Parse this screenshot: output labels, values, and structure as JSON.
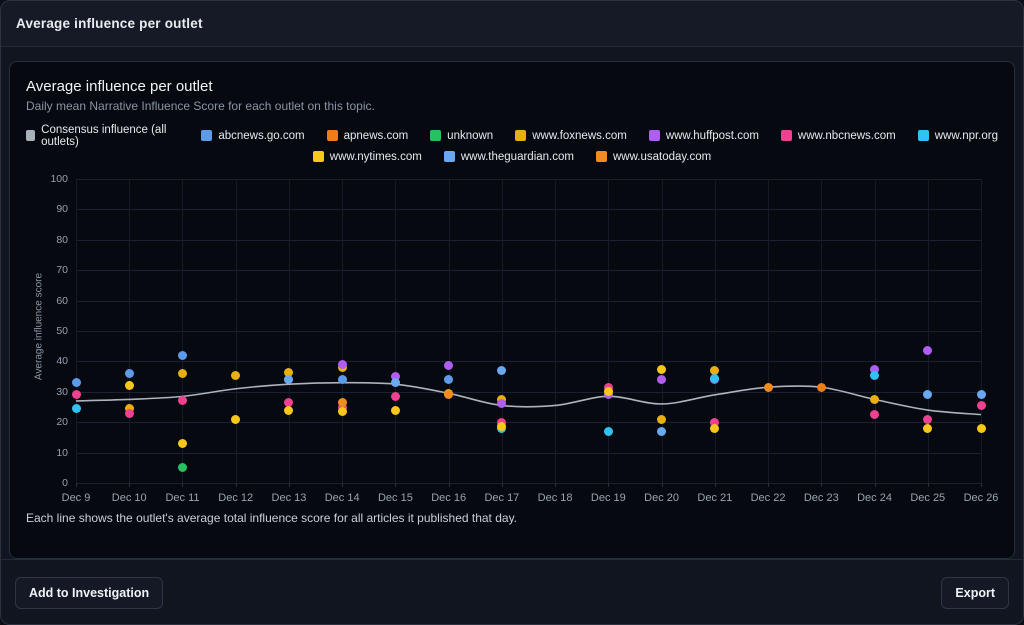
{
  "header": {
    "title": "Average influence per outlet"
  },
  "panel": {
    "title": "Average influence per outlet",
    "subtitle": "Daily mean Narrative Influence Score for each outlet on this topic.",
    "caption": "Each line shows the outlet's average total influence score for all articles it published that day."
  },
  "buttons": {
    "add_to_investigation": "Add to Investigation",
    "export": "Export"
  },
  "legend": {
    "rows": [
      [
        {
          "label": "Consensus influence (all outlets)",
          "color": "#a9b1ba"
        },
        {
          "label": "abcnews.go.com",
          "color": "#5b9bea"
        },
        {
          "label": "apnews.com",
          "color": "#ed7d18"
        },
        {
          "label": "unknown",
          "color": "#27c161"
        },
        {
          "label": "www.foxnews.com",
          "color": "#e9ae10"
        },
        {
          "label": "www.huffpost.com",
          "color": "#b05df2"
        },
        {
          "label": "www.nbcnews.com",
          "color": "#ee4190"
        },
        {
          "label": "www.npr.org",
          "color": "#30c2f2"
        }
      ],
      [
        {
          "label": "www.nytimes.com",
          "color": "#f8c718"
        },
        {
          "label": "www.theguardian.com",
          "color": "#6aa9f0"
        },
        {
          "label": "www.usatoday.com",
          "color": "#f28c1e"
        }
      ]
    ]
  },
  "chart_data": {
    "type": "scatter",
    "title": "Average influence per outlet",
    "ylabel": "Average influence score",
    "ylim": [
      0,
      100
    ],
    "ytick_step": 10,
    "grid": true,
    "legend_position": "top",
    "categories": [
      "Dec 9",
      "Dec 10",
      "Dec 11",
      "Dec 12",
      "Dec 13",
      "Dec 14",
      "Dec 15",
      "Dec 16",
      "Dec 17",
      "Dec 18",
      "Dec 19",
      "Dec 20",
      "Dec 21",
      "Dec 22",
      "Dec 23",
      "Dec 24",
      "Dec 25",
      "Dec 26"
    ],
    "consensus": {
      "name": "Consensus influence (all outlets)",
      "color": "#b6bdc6",
      "type": "line",
      "values": [
        27,
        27.5,
        28.5,
        31,
        32.5,
        33,
        32.5,
        29.5,
        25.5,
        25.5,
        28.5,
        26,
        29,
        31.5,
        31.5,
        27.5,
        24,
        22.5
      ]
    },
    "series": [
      {
        "name": "abcnews.go.com",
        "color": "#5b9bea",
        "values": [
          33,
          36,
          42,
          null,
          null,
          34,
          null,
          34,
          null,
          null,
          null,
          null,
          null,
          null,
          null,
          null,
          null,
          null
        ]
      },
      {
        "name": "apnews.com",
        "color": "#ed7d18",
        "values": [
          null,
          null,
          null,
          null,
          null,
          null,
          null,
          null,
          null,
          null,
          null,
          null,
          null,
          null,
          31.5,
          null,
          null,
          null
        ]
      },
      {
        "name": "unknown",
        "color": "#27c161",
        "values": [
          null,
          null,
          5,
          null,
          null,
          null,
          null,
          null,
          null,
          null,
          null,
          null,
          null,
          null,
          null,
          null,
          null,
          null
        ]
      },
      {
        "name": "www.foxnews.com",
        "color": "#e9ae10",
        "values": [
          null,
          24.5,
          36,
          35.5,
          36.5,
          38,
          null,
          29.5,
          27.5,
          null,
          null,
          21,
          37,
          null,
          null,
          27.5,
          null,
          null
        ]
      },
      {
        "name": "www.huffpost.com",
        "color": "#b05df2",
        "values": [
          null,
          null,
          null,
          null,
          null,
          39,
          35,
          38.5,
          26,
          null,
          29,
          34,
          34,
          null,
          null,
          37.5,
          43.5,
          null
        ]
      },
      {
        "name": "www.nbcnews.com",
        "color": "#ee4190",
        "values": [
          29,
          23,
          27,
          null,
          26.5,
          25,
          28.5,
          null,
          20,
          null,
          31.5,
          null,
          20,
          null,
          null,
          22.5,
          21,
          25.5
        ]
      },
      {
        "name": "www.npr.org",
        "color": "#30c2f2",
        "values": [
          24.5,
          null,
          null,
          null,
          null,
          null,
          null,
          null,
          18,
          null,
          17,
          null,
          34.5,
          null,
          null,
          35.5,
          null,
          null
        ]
      },
      {
        "name": "www.nytimes.com",
        "color": "#f8c718",
        "values": [
          null,
          32,
          13,
          21,
          24,
          23.5,
          24,
          null,
          18.5,
          null,
          30,
          37.5,
          18,
          null,
          null,
          null,
          18,
          18
        ]
      },
      {
        "name": "www.theguardian.com",
        "color": "#6aa9f0",
        "values": [
          null,
          null,
          null,
          null,
          34,
          null,
          33,
          null,
          37,
          null,
          null,
          17,
          null,
          null,
          null,
          null,
          29,
          29
        ]
      },
      {
        "name": "www.usatoday.com",
        "color": "#f28c1e",
        "values": [
          null,
          null,
          null,
          null,
          null,
          26.5,
          null,
          29,
          null,
          null,
          null,
          null,
          null,
          31.5,
          null,
          null,
          null,
          null
        ]
      }
    ]
  }
}
